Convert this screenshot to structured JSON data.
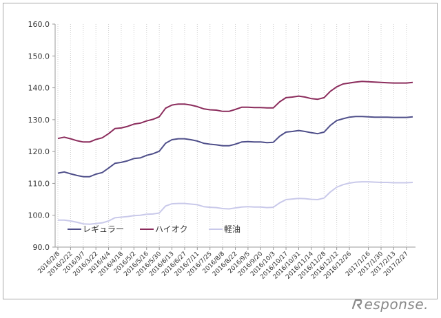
{
  "chart_data": {
    "type": "line",
    "title": "",
    "xlabel": "",
    "ylabel": "",
    "ylim": [
      90,
      160
    ],
    "yticks": [
      "90.0",
      "100.0",
      "110.0",
      "120.0",
      "130.0",
      "140.0",
      "150.0",
      "160.0"
    ],
    "grid": "vertical-dotted",
    "legend": "lower-left inside",
    "x": [
      "2016/2/8",
      "2016/2/15",
      "2016/2/22",
      "2016/2/29",
      "2016/3/7",
      "2016/3/14",
      "2016/3/22",
      "2016/3/28",
      "2016/4/4",
      "2016/4/11",
      "2016/4/18",
      "2016/4/25",
      "2016/5/2",
      "2016/5/9",
      "2016/5/16",
      "2016/5/23",
      "2016/5/30",
      "2016/6/6",
      "2016/6/13",
      "2016/6/20",
      "2016/6/27",
      "2016/7/4",
      "2016/7/11",
      "2016/7/19",
      "2016/7/25",
      "2016/8/1",
      "2016/8/8",
      "2016/8/15",
      "2016/8/22",
      "2016/8/29",
      "2016/9/5",
      "2016/9/12",
      "2016/9/20",
      "2016/9/26",
      "2016/10/3",
      "2016/10/11",
      "2016/10/17",
      "2016/10/24",
      "2016/10/31",
      "2016/11/7",
      "2016/11/14",
      "2016/11/21",
      "2016/11/28",
      "2016/12/5",
      "2016/12/12",
      "2016/12/19",
      "2016/12/26",
      "2017/1/4",
      "2017/1/10",
      "2017/1/16",
      "2017/1/23",
      "2017/1/30",
      "2017/2/6",
      "2017/2/13",
      "2017/2/20",
      "2017/2/27",
      "2017/3/6"
    ],
    "xtick_labels": [
      "2016/2/8",
      "2016/2/22",
      "2016/3/7",
      "2016/3/22",
      "2016/4/4",
      "2016/4/18",
      "2016/5/2",
      "2016/5/16",
      "2016/5/30",
      "2016/6/13",
      "2016/6/27",
      "2016/7/11",
      "2016/7/25",
      "2016/8/8",
      "2016/8/22",
      "2016/9/5",
      "2016/9/20",
      "2016/10/3",
      "2016/10/17",
      "2016/10/31",
      "2016/11/14",
      "2016/11/28",
      "2016/12/12",
      "2016/12/26",
      "2017/1/16",
      "2017/1/30",
      "2017/2/13",
      "2017/2/27"
    ],
    "series": [
      {
        "name": "レギュラー",
        "color": "#4f4f8a",
        "values": [
          113.2,
          113.6,
          113.0,
          112.5,
          112.1,
          112.1,
          112.9,
          113.4,
          114.8,
          116.3,
          116.6,
          117.1,
          117.8,
          118.0,
          118.8,
          119.3,
          120.1,
          122.6,
          123.7,
          124.0,
          124.0,
          123.7,
          123.3,
          122.6,
          122.3,
          122.1,
          121.8,
          121.8,
          122.3,
          123.0,
          123.1,
          123.0,
          123.0,
          122.8,
          122.9,
          124.8,
          126.1,
          126.3,
          126.6,
          126.3,
          125.9,
          125.6,
          126.1,
          128.2,
          129.7,
          130.3,
          130.8,
          131.0,
          131.0,
          130.9,
          130.8,
          130.8,
          130.8,
          130.7,
          130.7,
          130.7,
          130.9
        ]
      },
      {
        "name": "ハイオク",
        "color": "#8b2c5c",
        "values": [
          124.1,
          124.5,
          124.0,
          123.4,
          123.0,
          123.0,
          123.8,
          124.3,
          125.6,
          127.2,
          127.4,
          127.9,
          128.6,
          128.9,
          129.6,
          130.1,
          130.9,
          133.6,
          134.6,
          134.9,
          134.9,
          134.6,
          134.1,
          133.4,
          133.1,
          133.0,
          132.6,
          132.6,
          133.2,
          133.9,
          133.9,
          133.8,
          133.8,
          133.7,
          133.7,
          135.6,
          136.9,
          137.1,
          137.4,
          137.1,
          136.6,
          136.4,
          136.9,
          138.9,
          140.3,
          141.2,
          141.5,
          141.8,
          142.0,
          141.9,
          141.8,
          141.7,
          141.6,
          141.5,
          141.5,
          141.5,
          141.7
        ]
      },
      {
        "name": "軽油",
        "color": "#c9c9ea",
        "values": [
          98.5,
          98.5,
          98.2,
          97.8,
          97.3,
          97.2,
          97.4,
          97.6,
          98.2,
          99.2,
          99.4,
          99.6,
          99.9,
          100.0,
          100.3,
          100.4,
          100.7,
          102.9,
          103.6,
          103.7,
          103.7,
          103.5,
          103.3,
          102.7,
          102.5,
          102.4,
          102.1,
          102.0,
          102.3,
          102.6,
          102.7,
          102.6,
          102.6,
          102.4,
          102.5,
          103.9,
          104.9,
          105.1,
          105.3,
          105.2,
          105.0,
          104.9,
          105.4,
          107.3,
          108.8,
          109.6,
          110.1,
          110.4,
          110.5,
          110.5,
          110.4,
          110.3,
          110.3,
          110.2,
          110.2,
          110.2,
          110.3
        ]
      }
    ]
  },
  "watermark": {
    "text": "esponse.",
    "icon": "response-logo-mark"
  }
}
